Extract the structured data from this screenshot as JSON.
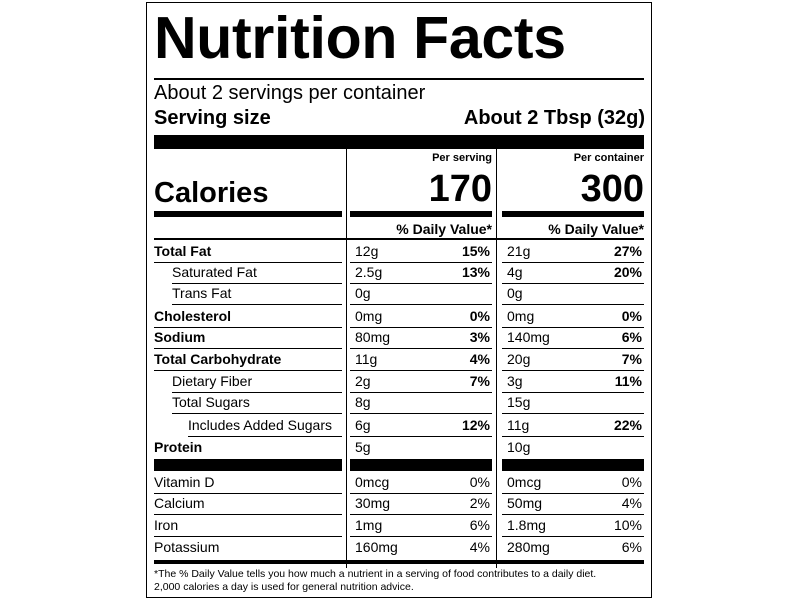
{
  "title": "Nutrition Facts",
  "servings_per_container": "About 2 servings per container",
  "serving_size_label": "Serving size",
  "serving_size_value": "About 2 Tbsp (32g)",
  "calories_label": "Calories",
  "columns": {
    "per_serving": {
      "header": "Per serving",
      "calories": "170",
      "dv_header": "% Daily Value*"
    },
    "per_container": {
      "header": "Per container",
      "calories": "300",
      "dv_header": "% Daily Value*"
    }
  },
  "nutrients": [
    {
      "name": "Total Fat",
      "serving_amount": "12g",
      "serving_dv": "15%",
      "container_amount": "21g",
      "container_dv": "27%"
    },
    {
      "name": "Saturated Fat",
      "serving_amount": "2.5g",
      "serving_dv": "13%",
      "container_amount": "4g",
      "container_dv": "20%"
    },
    {
      "name": "Trans Fat",
      "serving_amount": "0g",
      "serving_dv": "",
      "container_amount": "0g",
      "container_dv": ""
    },
    {
      "name": "Cholesterol",
      "serving_amount": "0mg",
      "serving_dv": "0%",
      "container_amount": "0mg",
      "container_dv": "0%"
    },
    {
      "name": "Sodium",
      "serving_amount": "80mg",
      "serving_dv": "3%",
      "container_amount": "140mg",
      "container_dv": "6%"
    },
    {
      "name": "Total Carbohydrate",
      "serving_amount": "11g",
      "serving_dv": "4%",
      "container_amount": "20g",
      "container_dv": "7%"
    },
    {
      "name": "Dietary Fiber",
      "serving_amount": "2g",
      "serving_dv": "7%",
      "container_amount": "3g",
      "container_dv": "11%"
    },
    {
      "name": "Total Sugars",
      "serving_amount": "8g",
      "serving_dv": "",
      "container_amount": "15g",
      "container_dv": ""
    },
    {
      "name": "Includes Added Sugars",
      "serving_amount": "6g",
      "serving_dv": "12%",
      "container_amount": "11g",
      "container_dv": "22%"
    },
    {
      "name": "Protein",
      "serving_amount": "5g",
      "serving_dv": "",
      "container_amount": "10g",
      "container_dv": ""
    }
  ],
  "vitamins": [
    {
      "name": "Vitamin D",
      "serving_amount": "0mcg",
      "serving_dv": "0%",
      "container_amount": "0mcg",
      "container_dv": "0%"
    },
    {
      "name": "Calcium",
      "serving_amount": "30mg",
      "serving_dv": "2%",
      "container_amount": "50mg",
      "container_dv": "4%"
    },
    {
      "name": "Iron",
      "serving_amount": "1mg",
      "serving_dv": "6%",
      "container_amount": "1.8mg",
      "container_dv": "10%"
    },
    {
      "name": "Potassium",
      "serving_amount": "160mg",
      "serving_dv": "4%",
      "container_amount": "280mg",
      "container_dv": "6%"
    }
  ],
  "footnote": [
    "*The % Daily Value tells you how much a nutrient in a serving of food contributes to a daily diet.",
    "2,000 calories a day is used for general nutrition advice."
  ]
}
